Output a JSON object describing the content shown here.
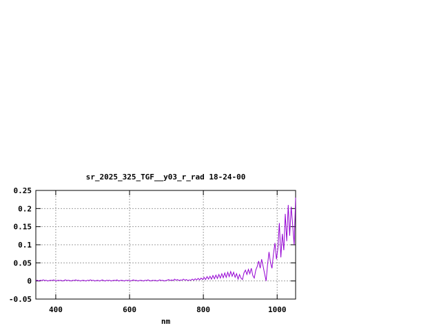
{
  "window": {
    "background": "#ffffff"
  },
  "chart_data": {
    "type": "line",
    "title": "sr_2025_325_TGF__y03_r_rad 18-24-00",
    "xlabel": "nm",
    "ylabel": "",
    "xlim": [
      346,
      1050
    ],
    "ylim": [
      -0.05,
      0.25
    ],
    "x_ticks": [
      400,
      600,
      800,
      1000
    ],
    "x_tick_labels": [
      "400",
      "600",
      "800",
      "1000"
    ],
    "y_ticks": [
      -0.05,
      0,
      0.05,
      0.1,
      0.15,
      0.2,
      0.25
    ],
    "y_tick_labels": [
      "-0.05",
      "0",
      "0.05",
      "0.1",
      "0.15",
      "0.2",
      "0.25"
    ],
    "grid": true,
    "grid_style": "dashed",
    "legend": "none",
    "line_color": "#9400d3",
    "axis_color": "#000000",
    "grid_color": "#9e9e9e",
    "background_color": "#ffffff",
    "series": [
      {
        "x": [
          346,
          350,
          354,
          358,
          362,
          366,
          370,
          374,
          378,
          382,
          386,
          390,
          394,
          398,
          402,
          406,
          410,
          414,
          418,
          422,
          426,
          430,
          434,
          438,
          442,
          446,
          450,
          454,
          458,
          462,
          466,
          470,
          474,
          478,
          482,
          486,
          490,
          494,
          498,
          502,
          506,
          510,
          514,
          518,
          522,
          526,
          530,
          534,
          538,
          542,
          546,
          550,
          554,
          558,
          562,
          566,
          570,
          574,
          578,
          582,
          586,
          590,
          594,
          598,
          602,
          606,
          610,
          614,
          618,
          622,
          626,
          630,
          634,
          638,
          642,
          646,
          650,
          654,
          658,
          662,
          666,
          670,
          674,
          678,
          682,
          686,
          690,
          694,
          698,
          702,
          706,
          710,
          714,
          718,
          722,
          726,
          730,
          734,
          738,
          742,
          746,
          750,
          754,
          758,
          762,
          766,
          770,
          774,
          778,
          782,
          786,
          790,
          794,
          798,
          802,
          806,
          810,
          814,
          818,
          822,
          826,
          830,
          834,
          838,
          842,
          846,
          850,
          854,
          858,
          862,
          866,
          870,
          874,
          878,
          882,
          886,
          890,
          894,
          898,
          902,
          906,
          910,
          914,
          918,
          922,
          926,
          930,
          934,
          938,
          942,
          946,
          950,
          954,
          958,
          962,
          966,
          970,
          974,
          978,
          982,
          986,
          990,
          994,
          998,
          1002,
          1006,
          1010,
          1014,
          1018,
          1022,
          1026,
          1030,
          1034,
          1038,
          1042,
          1046,
          1050
        ],
        "y": [
          0.001,
          0.002,
          0.0,
          0.002,
          0.001,
          0.003,
          0.001,
          0.002,
          0.0,
          0.001,
          0.002,
          0.001,
          0.003,
          0.001,
          0.0,
          0.002,
          0.001,
          0.002,
          0.0,
          0.001,
          0.003,
          0.001,
          0.002,
          0.001,
          0.0,
          0.002,
          0.001,
          0.003,
          0.001,
          0.002,
          0.0,
          0.001,
          0.002,
          0.001,
          0.0,
          0.002,
          0.001,
          0.003,
          0.001,
          0.002,
          0.0,
          0.001,
          0.002,
          0.0,
          0.001,
          0.003,
          0.001,
          0.0,
          0.002,
          0.001,
          0.002,
          0.0,
          0.001,
          0.002,
          0.001,
          0.003,
          0.0,
          0.001,
          0.002,
          0.001,
          0.0,
          0.002,
          0.001,
          0.002,
          0.0,
          0.001,
          0.003,
          0.001,
          0.002,
          0.0,
          0.001,
          0.002,
          0.001,
          0.0,
          0.002,
          0.001,
          0.003,
          0.001,
          0.0,
          0.002,
          0.001,
          0.002,
          0.0,
          0.001,
          0.003,
          0.001,
          0.002,
          0.0,
          0.001,
          0.002,
          0.004,
          0.001,
          0.003,
          0.001,
          0.005,
          0.002,
          0.004,
          0.001,
          0.003,
          0.002,
          0.005,
          0.002,
          0.004,
          0.001,
          0.003,
          0.002,
          0.005,
          0.002,
          0.006,
          0.003,
          0.007,
          0.003,
          0.008,
          0.004,
          0.01,
          0.004,
          0.012,
          0.005,
          0.013,
          0.005,
          0.015,
          0.006,
          0.016,
          0.007,
          0.018,
          0.008,
          0.02,
          0.009,
          0.022,
          0.01,
          0.024,
          0.012,
          0.026,
          0.013,
          0.024,
          0.01,
          0.02,
          0.005,
          0.018,
          0.008,
          0.004,
          0.022,
          0.03,
          0.018,
          0.032,
          0.02,
          0.035,
          0.015,
          0.008,
          0.03,
          0.04,
          0.055,
          0.035,
          0.06,
          0.04,
          0.02,
          0.0,
          0.045,
          0.08,
          0.05,
          0.035,
          0.075,
          0.105,
          0.06,
          0.09,
          0.16,
          0.065,
          0.13,
          0.085,
          0.185,
          0.11,
          0.21,
          0.125,
          0.205,
          0.155,
          0.1,
          0.23
        ]
      }
    ]
  }
}
